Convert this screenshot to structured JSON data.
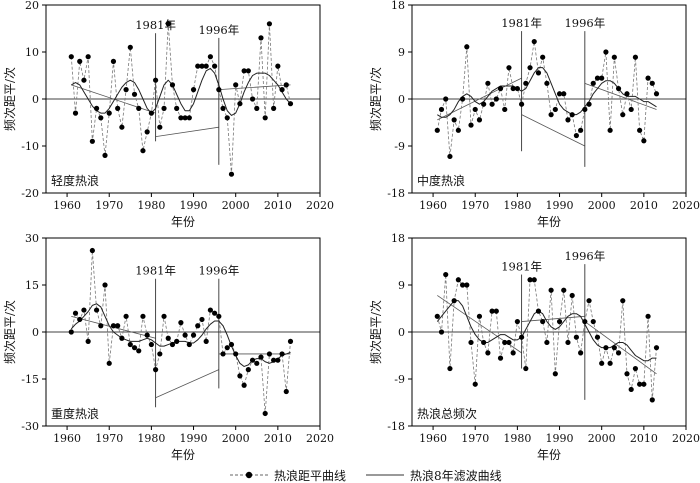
{
  "figure": {
    "legend": {
      "anomaly_label": "热浪距平曲线",
      "filter_label": "热浪8年滤波曲线"
    }
  },
  "chart_data": [
    {
      "type": "line",
      "panel_label": "轻度热浪",
      "xlabel": "年份",
      "ylabel": "频次距平/次",
      "xlim": [
        1955,
        2020
      ],
      "ylim": [
        -20,
        20
      ],
      "xticks": [
        1960,
        1970,
        1980,
        1990,
        2000,
        2010,
        2020
      ],
      "yticks": [
        -20,
        -10,
        0,
        10,
        20
      ],
      "annotations": [
        {
          "label": "1981年",
          "x": 1981,
          "y_top": 14,
          "y_bottom": -9
        },
        {
          "label": "1996年",
          "x": 1996,
          "y_top": 13,
          "y_bottom": -14
        }
      ],
      "years": [
        1961,
        1962,
        1963,
        1964,
        1965,
        1966,
        1967,
        1968,
        1969,
        1970,
        1971,
        1972,
        1973,
        1974,
        1975,
        1976,
        1977,
        1978,
        1979,
        1980,
        1981,
        1982,
        1983,
        1984,
        1985,
        1986,
        1987,
        1988,
        1989,
        1990,
        1991,
        1992,
        1993,
        1994,
        1995,
        1996,
        1997,
        1998,
        1999,
        2000,
        2001,
        2002,
        2003,
        2004,
        2005,
        2006,
        2007,
        2008,
        2009,
        2010,
        2011,
        2012,
        2013
      ],
      "anomaly": [
        9,
        -3,
        8,
        4,
        9,
        -9,
        -2,
        -4,
        -12,
        -3,
        8,
        -2,
        -6,
        2,
        11,
        1,
        -2,
        -11,
        -7,
        -3,
        4,
        -6,
        -2,
        16,
        3,
        -2,
        -4,
        -4,
        -4,
        2,
        7,
        7,
        7,
        9,
        7,
        2,
        -2,
        -4,
        -16,
        3,
        -1,
        6,
        6,
        0,
        -2,
        13,
        -4,
        16,
        -2,
        7,
        2,
        3,
        -1
      ],
      "filter": [
        3,
        3.5,
        3,
        1.5,
        0,
        -1.5,
        -2.5,
        -3,
        -3,
        -2,
        -0.5,
        1,
        2.5,
        3.5,
        4,
        3.5,
        2,
        0,
        -2,
        -3,
        -2,
        0.5,
        3,
        4,
        3,
        1,
        -1,
        -2.5,
        -2.5,
        -1,
        1.5,
        4,
        6,
        6.5,
        5.5,
        3,
        0,
        -2.5,
        -3.5,
        -3,
        -1,
        1.5,
        3.5,
        5,
        5.5,
        5.5,
        5.5,
        5,
        4,
        3,
        1.5,
        0,
        -1
      ],
      "trends": [
        {
          "x": [
            1961,
            1981
          ],
          "y": [
            3,
            -3
          ]
        },
        {
          "x": [
            1981,
            1996
          ],
          "y": [
            -8,
            -6
          ]
        },
        {
          "x": [
            1996,
            2013
          ],
          "y": [
            2,
            3
          ]
        }
      ]
    },
    {
      "type": "line",
      "panel_label": "中度热浪",
      "xlabel": "年份",
      "ylabel": "频次距平/次",
      "xlim": [
        1955,
        2020
      ],
      "ylim": [
        -18,
        18
      ],
      "xticks": [
        1960,
        1970,
        1980,
        1990,
        2000,
        2010,
        2020
      ],
      "yticks": [
        -18,
        -9,
        0,
        9,
        18
      ],
      "annotations": [
        {
          "label": "1981年",
          "x": 1981,
          "y_top": 13,
          "y_bottom": -10
        },
        {
          "label": "1996年",
          "x": 1996,
          "y_top": 13,
          "y_bottom": -13
        }
      ],
      "years": [
        1961,
        1962,
        1963,
        1964,
        1965,
        1966,
        1967,
        1968,
        1969,
        1970,
        1971,
        1972,
        1973,
        1974,
        1975,
        1976,
        1977,
        1978,
        1979,
        1980,
        1981,
        1982,
        1983,
        1984,
        1985,
        1986,
        1987,
        1988,
        1989,
        1990,
        1991,
        1992,
        1993,
        1994,
        1995,
        1996,
        1997,
        1998,
        1999,
        2000,
        2001,
        2002,
        2003,
        2004,
        2005,
        2006,
        2007,
        2008,
        2009,
        2010,
        2011,
        2012,
        2013
      ],
      "anomaly": [
        -6,
        -2,
        0,
        -11,
        -4,
        -6,
        0,
        10,
        -5,
        -2,
        -4,
        -1,
        3,
        -1,
        0,
        2,
        -2,
        6,
        2,
        2,
        -1,
        3,
        6,
        11,
        5,
        8,
        3,
        -3,
        -2,
        1,
        1,
        -4,
        -3,
        -7,
        -6,
        -2,
        -1,
        3,
        4,
        4,
        9,
        -6,
        8,
        2,
        -3,
        1,
        -2,
        8,
        -6,
        -8,
        4,
        3,
        1
      ],
      "filter": [
        -3,
        -3.5,
        -3.5,
        -3,
        -2,
        -0.5,
        0.5,
        1,
        0.5,
        -0.5,
        -1,
        -0.5,
        0.5,
        1.5,
        2,
        2.5,
        2.5,
        2.5,
        2.5,
        2,
        1.5,
        2,
        3.5,
        5,
        6,
        6,
        5,
        3,
        1,
        -1,
        -2,
        -2.5,
        -3,
        -3,
        -2.5,
        -1.5,
        -0.5,
        1,
        2,
        3,
        3.5,
        3.5,
        3,
        2,
        1,
        0.5,
        0.5,
        0.5,
        0,
        -0.5,
        -0.5,
        -1,
        -1.5
      ],
      "trends": [
        {
          "x": [
            1961,
            1981
          ],
          "y": [
            -4,
            4
          ]
        },
        {
          "x": [
            1981,
            1996
          ],
          "y": [
            -3,
            -9
          ]
        },
        {
          "x": [
            1996,
            2013
          ],
          "y": [
            3,
            -2
          ]
        }
      ]
    },
    {
      "type": "line",
      "panel_label": "重度热浪",
      "xlabel": "年份",
      "ylabel": "频次距平/次",
      "xlim": [
        1955,
        2020
      ],
      "ylim": [
        -30,
        30
      ],
      "xticks": [
        1960,
        1970,
        1980,
        1990,
        2000,
        2010,
        2020
      ],
      "yticks": [
        -30,
        -15,
        0,
        15,
        30
      ],
      "annotations": [
        {
          "label": "1981年",
          "x": 1981,
          "y_top": 17,
          "y_bottom": -24
        },
        {
          "label": "1996年",
          "x": 1996,
          "y_top": 17,
          "y_bottom": -18
        }
      ],
      "years": [
        1961,
        1962,
        1963,
        1964,
        1965,
        1966,
        1967,
        1968,
        1969,
        1970,
        1971,
        1972,
        1973,
        1974,
        1975,
        1976,
        1977,
        1978,
        1979,
        1980,
        1981,
        1982,
        1983,
        1984,
        1985,
        1986,
        1987,
        1988,
        1989,
        1990,
        1991,
        1992,
        1993,
        1994,
        1995,
        1996,
        1997,
        1998,
        1999,
        2000,
        2001,
        2002,
        2003,
        2004,
        2005,
        2006,
        2007,
        2008,
        2009,
        2010,
        2011,
        2012,
        2013
      ],
      "anomaly": [
        0,
        6,
        4,
        7,
        -3,
        26,
        7,
        2,
        15,
        -10,
        2,
        2,
        -2,
        5,
        -4,
        -5,
        -6,
        5,
        -1,
        -4,
        -12,
        -7,
        5,
        -2,
        -4,
        -3,
        3,
        -1,
        -4,
        -1,
        2,
        4,
        -3,
        7,
        6,
        5,
        -7,
        -5,
        -4,
        -7,
        -14,
        -17,
        -12,
        -9,
        -10,
        -8,
        -26,
        -7,
        -9,
        -9,
        -7,
        -19,
        -3
      ],
      "filter": [
        1,
        2.5,
        3.5,
        5,
        6.5,
        8.5,
        9,
        8,
        5,
        2,
        0,
        -1,
        -2,
        -2.5,
        -3,
        -3,
        -3,
        -2.5,
        -2,
        -2.5,
        -3.5,
        -4.5,
        -4.5,
        -4,
        -3.5,
        -3,
        -3,
        -3,
        -3.5,
        -3.5,
        -2.5,
        -1,
        1,
        2.5,
        3.5,
        3.5,
        2,
        -1,
        -4.5,
        -7.5,
        -10,
        -11,
        -10.5,
        -9,
        -8.5,
        -8.5,
        -9.5,
        -10,
        -9.5,
        -8.5,
        -7.5,
        -7,
        -6.5
      ],
      "trends": [
        {
          "x": [
            1961,
            1981
          ],
          "y": [
            5,
            -2
          ]
        },
        {
          "x": [
            1981,
            1996
          ],
          "y": [
            -21,
            -12
          ]
        },
        {
          "x": [
            1996,
            2013
          ],
          "y": [
            -7,
            -7
          ]
        }
      ]
    },
    {
      "type": "line",
      "panel_label": "热浪总频次",
      "xlabel": "年份",
      "ylabel": "频次距平/次",
      "xlim": [
        1955,
        2020
      ],
      "ylim": [
        -18,
        18
      ],
      "xticks": [
        1960,
        1970,
        1980,
        1990,
        2000,
        2010,
        2020
      ],
      "yticks": [
        -18,
        -9,
        0,
        9,
        18
      ],
      "annotations": [
        {
          "label": "1981年",
          "x": 1981,
          "y_top": 11,
          "y_bottom": -7
        },
        {
          "label": "1996年",
          "x": 1996,
          "y_top": 13,
          "y_bottom": -13
        }
      ],
      "years": [
        1961,
        1962,
        1963,
        1964,
        1965,
        1966,
        1967,
        1968,
        1969,
        1970,
        1971,
        1972,
        1973,
        1974,
        1975,
        1976,
        1977,
        1978,
        1979,
        1980,
        1981,
        1982,
        1983,
        1984,
        1985,
        1986,
        1987,
        1988,
        1989,
        1990,
        1991,
        1992,
        1993,
        1994,
        1995,
        1996,
        1997,
        1998,
        1999,
        2000,
        2001,
        2002,
        2003,
        2004,
        2005,
        2006,
        2007,
        2008,
        2009,
        2010,
        2011,
        2012,
        2013
      ],
      "anomaly": [
        3,
        0,
        11,
        -7,
        6,
        10,
        9,
        9,
        -2,
        -10,
        3,
        -2,
        -4,
        4,
        4,
        -5,
        -2,
        -2,
        -4,
        2,
        -1,
        -7,
        10,
        10,
        4,
        2,
        -2,
        8,
        -8,
        2,
        8,
        -2,
        7,
        -1,
        -4,
        2,
        6,
        2,
        -1,
        -6,
        -3,
        -6,
        -3,
        -4,
        6,
        -8,
        -11,
        -7,
        -10,
        -10,
        3,
        -13,
        -3
      ],
      "filter": [
        2,
        3,
        4,
        5,
        6,
        6,
        5,
        3,
        1,
        -0.5,
        -1.5,
        -2,
        -2,
        -1.5,
        -1,
        -0.5,
        -0.5,
        -1,
        -1.5,
        -1.5,
        -1,
        0.5,
        2,
        3.5,
        4,
        3.5,
        2,
        1,
        0.5,
        1,
        2,
        3,
        3.5,
        3.5,
        3,
        1.5,
        0,
        -1.5,
        -2.5,
        -3,
        -3,
        -3,
        -2.5,
        -2,
        -2,
        -2.5,
        -3.5,
        -4.5,
        -5,
        -5.5,
        -5.5,
        -5,
        -5
      ],
      "trends": [
        {
          "x": [
            1961,
            1981
          ],
          "y": [
            7,
            -4
          ]
        },
        {
          "x": [
            1981,
            1996
          ],
          "y": [
            2,
            3
          ]
        },
        {
          "x": [
            1996,
            2013
          ],
          "y": [
            2,
            -8
          ]
        }
      ]
    }
  ]
}
